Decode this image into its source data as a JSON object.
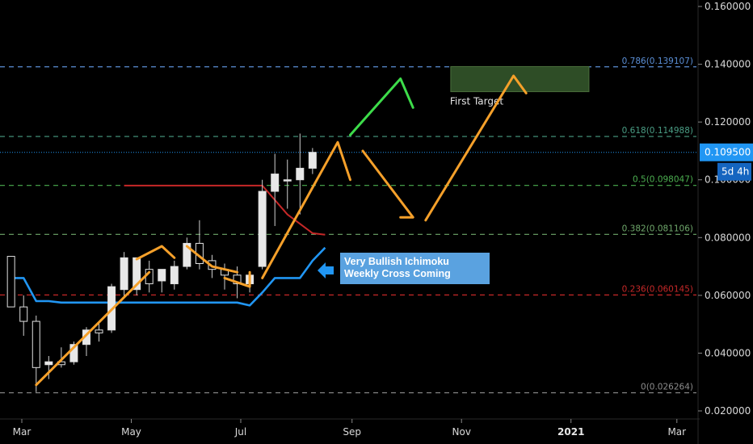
{
  "chart_data": {
    "type": "candlestick",
    "interval": "weekly",
    "x_axis": {
      "tick_labels": [
        "Mar",
        "May",
        "Jul",
        "Sep",
        "Nov",
        "2021",
        "Mar"
      ],
      "bold": [
        "2021"
      ]
    },
    "y_axis": {
      "range": [
        0.018,
        0.162
      ],
      "tick_labels": [
        "0.160000",
        "0.140000",
        "0.120000",
        "0.100000",
        "0.080000",
        "0.060000",
        "0.040000",
        "0.020000"
      ],
      "position": "right"
    },
    "current_price": {
      "value": 0.1095,
      "label": "0.109500",
      "countdown": "5d 4h",
      "color": "#2196f3"
    },
    "candles": [
      {
        "date": "2020-02-24",
        "o": 0.0735,
        "h": 0.0735,
        "l": 0.056,
        "c": 0.056
      },
      {
        "date": "2020-03-02",
        "o": 0.056,
        "h": 0.06,
        "l": 0.046,
        "c": 0.051
      },
      {
        "date": "2020-03-09",
        "o": 0.051,
        "h": 0.053,
        "l": 0.0265,
        "c": 0.035
      },
      {
        "date": "2020-03-16",
        "o": 0.036,
        "h": 0.039,
        "l": 0.031,
        "c": 0.037
      },
      {
        "date": "2020-03-23",
        "o": 0.037,
        "h": 0.042,
        "l": 0.035,
        "c": 0.036
      },
      {
        "date": "2020-03-30",
        "o": 0.037,
        "h": 0.044,
        "l": 0.036,
        "c": 0.043
      },
      {
        "date": "2020-04-06",
        "o": 0.043,
        "h": 0.049,
        "l": 0.039,
        "c": 0.048
      },
      {
        "date": "2020-04-13",
        "o": 0.048,
        "h": 0.051,
        "l": 0.044,
        "c": 0.047
      },
      {
        "date": "2020-04-20",
        "o": 0.048,
        "h": 0.064,
        "l": 0.047,
        "c": 0.063
      },
      {
        "date": "2020-04-27",
        "o": 0.062,
        "h": 0.075,
        "l": 0.059,
        "c": 0.073
      },
      {
        "date": "2020-05-04",
        "o": 0.062,
        "h": 0.072,
        "l": 0.06,
        "c": 0.073
      },
      {
        "date": "2020-05-11",
        "o": 0.069,
        "h": 0.072,
        "l": 0.061,
        "c": 0.064
      },
      {
        "date": "2020-05-18",
        "o": 0.065,
        "h": 0.069,
        "l": 0.061,
        "c": 0.069
      },
      {
        "date": "2020-05-25",
        "o": 0.064,
        "h": 0.072,
        "l": 0.062,
        "c": 0.07
      },
      {
        "date": "2020-06-01",
        "o": 0.07,
        "h": 0.08,
        "l": 0.069,
        "c": 0.078
      },
      {
        "date": "2020-06-08",
        "o": 0.078,
        "h": 0.086,
        "l": 0.069,
        "c": 0.071
      },
      {
        "date": "2020-06-15",
        "o": 0.072,
        "h": 0.074,
        "l": 0.066,
        "c": 0.069
      },
      {
        "date": "2020-06-22",
        "o": 0.069,
        "h": 0.071,
        "l": 0.062,
        "c": 0.067
      },
      {
        "date": "2020-06-29",
        "o": 0.067,
        "h": 0.07,
        "l": 0.059,
        "c": 0.064
      },
      {
        "date": "2020-07-06",
        "o": 0.064,
        "h": 0.068,
        "l": 0.061,
        "c": 0.067
      },
      {
        "date": "2020-07-13",
        "o": 0.07,
        "h": 0.1,
        "l": 0.069,
        "c": 0.096
      },
      {
        "date": "2020-07-20",
        "o": 0.096,
        "h": 0.109,
        "l": 0.084,
        "c": 0.102
      },
      {
        "date": "2020-07-27",
        "o": 0.1,
        "h": 0.107,
        "l": 0.09,
        "c": 0.1
      },
      {
        "date": "2020-08-03",
        "o": 0.1,
        "h": 0.116,
        "l": 0.088,
        "c": 0.104
      },
      {
        "date": "2020-08-10",
        "o": 0.104,
        "h": 0.111,
        "l": 0.102,
        "c": 0.1095
      }
    ],
    "tenkan_sen": {
      "color": "#2196f3",
      "points": [
        [
          "2020-02-24",
          0.066
        ],
        [
          "2020-03-02",
          0.066
        ],
        [
          "2020-03-09",
          0.058
        ],
        [
          "2020-03-16",
          0.058
        ],
        [
          "2020-03-23",
          0.0575
        ],
        [
          "2020-06-15",
          0.0575
        ],
        [
          "2020-06-29",
          0.0575
        ],
        [
          "2020-07-06",
          0.0565
        ],
        [
          "2020-07-13",
          0.061
        ],
        [
          "2020-07-20",
          0.066
        ],
        [
          "2020-08-03",
          0.066
        ],
        [
          "2020-08-10",
          0.072
        ],
        [
          "2020-08-17",
          0.0765
        ]
      ]
    },
    "kijun_sen": {
      "color": "#c62828",
      "points": [
        [
          "2020-04-27",
          0.098
        ],
        [
          "2020-07-13",
          0.098
        ],
        [
          "2020-07-27",
          0.088
        ],
        [
          "2020-08-10",
          0.0815
        ],
        [
          "2020-08-17",
          0.081
        ]
      ]
    },
    "fibonacci": [
      {
        "ratio_label": "0.786(0.139107)",
        "value": 0.139107,
        "color": "#5b8fd6"
      },
      {
        "ratio_label": "0.618(0.114988)",
        "value": 0.114988,
        "color": "#4a9e85"
      },
      {
        "ratio_label": "0.5(0.098047)",
        "value": 0.098047,
        "color": "#4caf50"
      },
      {
        "ratio_label": "0.382(0.081106)",
        "value": 0.081106,
        "color": "#6fa86b"
      },
      {
        "ratio_label": "0.236(0.060145)",
        "value": 0.060145,
        "color": "#c62828"
      },
      {
        "ratio_label": "0(0.026264)",
        "value": 0.026264,
        "color": "#8c8c8c"
      }
    ],
    "target_zone": {
      "label": "First Target",
      "x0": "2020-10-26",
      "x1": "2021-01-11",
      "y0": 0.1305,
      "y1": 0.1392,
      "color": "#2e4d26"
    },
    "annotation": {
      "lines": [
        "Very Bullish Ichimoku",
        "Weekly Cross Coming"
      ],
      "color": "#5aa2e0",
      "arrow_color": "#2196f3"
    },
    "drawn_arrows": [
      {
        "color": "#f5a02a",
        "points": [
          [
            "2020-03-09",
            0.029
          ],
          [
            "2020-05-11",
            0.068
          ]
        ],
        "head": false
      },
      {
        "color": "#f5a02a",
        "points": [
          [
            "2020-05-04",
            0.0725
          ],
          [
            "2020-05-18",
            0.077
          ],
          [
            "2020-05-25",
            0.073
          ]
        ],
        "head": true
      },
      {
        "color": "#f5a02a",
        "points": [
          [
            "2020-06-01",
            0.077
          ],
          [
            "2020-06-15",
            0.07
          ],
          [
            "2020-06-29",
            0.068
          ]
        ],
        "head": false
      },
      {
        "color": "#f5a02a",
        "points": [
          [
            "2020-06-22",
            0.066
          ],
          [
            "2020-07-06",
            0.063
          ],
          [
            "2020-07-06",
            0.068
          ]
        ],
        "head": false
      },
      {
        "color": "#f5a02a",
        "points": [
          [
            "2020-07-13",
            0.066
          ],
          [
            "2020-08-24",
            0.113
          ],
          [
            "2020-08-31",
            0.1
          ]
        ],
        "head": true
      },
      {
        "color": "#f5a02a",
        "points": [
          [
            "2020-09-07",
            0.11
          ],
          [
            "2020-10-05",
            0.087
          ],
          [
            "2020-09-28",
            0.087
          ]
        ],
        "head": true
      },
      {
        "color": "#f5a02a",
        "points": [
          [
            "2020-10-12",
            0.086
          ],
          [
            "2020-11-30",
            0.136
          ],
          [
            "2020-12-07",
            0.13
          ]
        ],
        "head": true
      },
      {
        "color": "#3ddc4a",
        "points": [
          [
            "2020-08-31",
            0.1155
          ],
          [
            "2020-09-28",
            0.135
          ],
          [
            "2020-10-05",
            0.125
          ]
        ],
        "head": true
      }
    ]
  }
}
